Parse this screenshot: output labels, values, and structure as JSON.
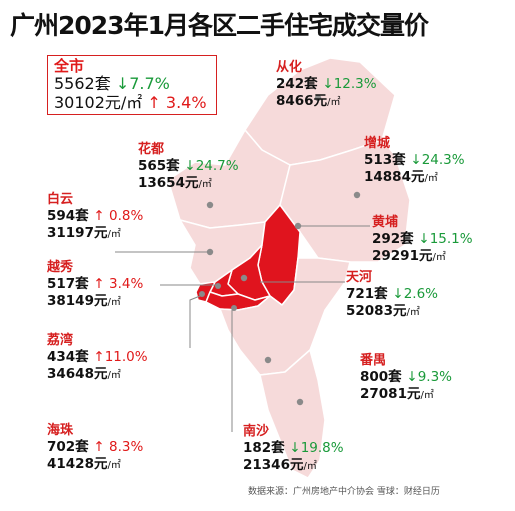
{
  "title": "广州2023年1月各区二手住宅成交量价",
  "summary": {
    "name": "全市",
    "units": "5562套",
    "units_change": "↓7.7%",
    "price": "30102元/㎡",
    "price_change": "↑ 3.4%"
  },
  "districts": [
    {
      "key": "conghua",
      "name": "从化",
      "units": "242套",
      "units_change": "↓12.3%",
      "units_dir": "down",
      "price": "8466元",
      "unit": "/㎡",
      "highlight": false
    },
    {
      "key": "huadu",
      "name": "花都",
      "units": "565套",
      "units_change": "↓24.7%",
      "units_dir": "down",
      "price": "13654元",
      "unit": "/㎡",
      "highlight": false
    },
    {
      "key": "zengcheng",
      "name": "增城",
      "units": "513套",
      "units_change": "↓24.3%",
      "units_dir": "down",
      "price": "14884元",
      "unit": "/㎡",
      "highlight": false
    },
    {
      "key": "baiyun",
      "name": "白云",
      "units": "594套",
      "units_change": "↑ 0.8%",
      "units_dir": "up",
      "price": "31197元",
      "unit": "/㎡",
      "highlight": false
    },
    {
      "key": "huangpu",
      "name": "黄埔",
      "units": "292套",
      "units_change": "↓15.1%",
      "units_dir": "down",
      "price": "29291元",
      "unit": "/㎡",
      "highlight": true
    },
    {
      "key": "yuexiu",
      "name": "越秀",
      "units": "517套",
      "units_change": "↑ 3.4%",
      "units_dir": "up",
      "price": "38149元",
      "unit": "/㎡",
      "highlight": true
    },
    {
      "key": "tianhe",
      "name": "天河",
      "units": "721套",
      "units_change": "↓2.6%",
      "units_dir": "down",
      "price": "52083元",
      "unit": "/㎡",
      "highlight": true
    },
    {
      "key": "liwan",
      "name": "荔湾",
      "units": "434套",
      "units_change": "↑11.0%",
      "units_dir": "up",
      "price": "34648元",
      "unit": "/㎡",
      "highlight": true
    },
    {
      "key": "panyu",
      "name": "番禺",
      "units": "800套",
      "units_change": "↓9.3%",
      "units_dir": "down",
      "price": "27081元",
      "unit": "/㎡",
      "highlight": false
    },
    {
      "key": "haizhu",
      "name": "海珠",
      "units": "702套",
      "units_change": "↑ 8.3%",
      "units_dir": "up",
      "price": "41428元",
      "unit": "/㎡",
      "highlight": true
    },
    {
      "key": "nansha",
      "name": "南沙",
      "units": "182套",
      "units_change": "↓19.8%",
      "units_dir": "down",
      "price": "21346元",
      "unit": "/㎡",
      "highlight": false
    }
  ],
  "source": "数据来源：广州房地产中介协会  雪球：财经日历",
  "colors": {
    "region_fill": "#f6dada",
    "highlight_fill": "#e0141e",
    "up": "#e01a1a",
    "down": "#1a9a3a",
    "label_red": "#d62020",
    "leader": "#888888"
  }
}
